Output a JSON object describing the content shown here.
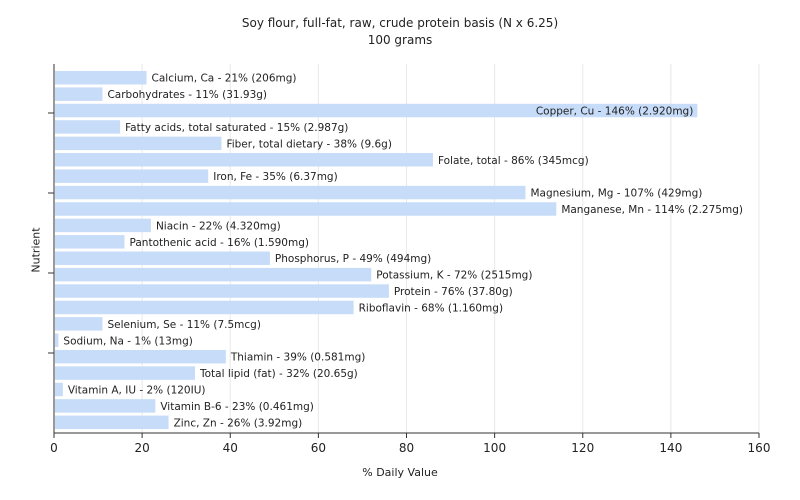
{
  "chart_data": {
    "type": "bar",
    "orientation": "horizontal",
    "title": "Soy flour, full-fat, raw, crude protein basis (N x 6.25)",
    "subtitle": "100 grams",
    "xlabel": "% Daily Value",
    "ylabel": "Nutrient",
    "xlim": [
      0,
      160
    ],
    "xticks": [
      "0",
      "20",
      "40",
      "60",
      "80",
      "100",
      "120",
      "140",
      "160"
    ],
    "grid": true,
    "bar_color": "#c6dcf8",
    "categories": [
      "Calcium, Ca",
      "Carbohydrates",
      "Copper, Cu",
      "Fatty acids, total saturated",
      "Fiber, total dietary",
      "Folate, total",
      "Iron, Fe",
      "Magnesium, Mg",
      "Manganese, Mn",
      "Niacin",
      "Pantothenic acid",
      "Phosphorus, P",
      "Potassium, K",
      "Protein",
      "Riboflavin",
      "Selenium, Se",
      "Sodium, Na",
      "Thiamin",
      "Total lipid (fat)",
      "Vitamin A, IU",
      "Vitamin B-6",
      "Zinc, Zn"
    ],
    "values": [
      21,
      11,
      146,
      15,
      38,
      86,
      35,
      107,
      114,
      22,
      16,
      49,
      72,
      76,
      68,
      11,
      1,
      39,
      32,
      2,
      23,
      26
    ],
    "labels": [
      "Calcium, Ca - 21% (206mg)",
      "Carbohydrates - 11% (31.93g)",
      "Copper, Cu - 146% (2.920mg)",
      "Fatty acids, total saturated - 15% (2.987g)",
      "Fiber, total dietary - 38% (9.6g)",
      "Folate, total - 86% (345mcg)",
      "Iron, Fe - 35% (6.37mg)",
      "Magnesium, Mg - 107% (429mg)",
      "Manganese, Mn - 114% (2.275mg)",
      "Niacin - 22% (4.320mg)",
      "Pantothenic acid - 16% (1.590mg)",
      "Phosphorus, P - 49% (494mg)",
      "Potassium, K - 72% (2515mg)",
      "Protein - 76% (37.80g)",
      "Riboflavin - 68% (1.160mg)",
      "Selenium, Se - 11% (7.5mcg)",
      "Sodium, Na - 1% (13mg)",
      "Thiamin - 39% (0.581mg)",
      "Total lipid (fat) - 32% (20.65g)",
      "Vitamin A, IU - 2% (120IU)",
      "Vitamin B-6 - 23% (0.461mg)",
      "Zinc, Zn - 26% (3.92mg)"
    ]
  }
}
